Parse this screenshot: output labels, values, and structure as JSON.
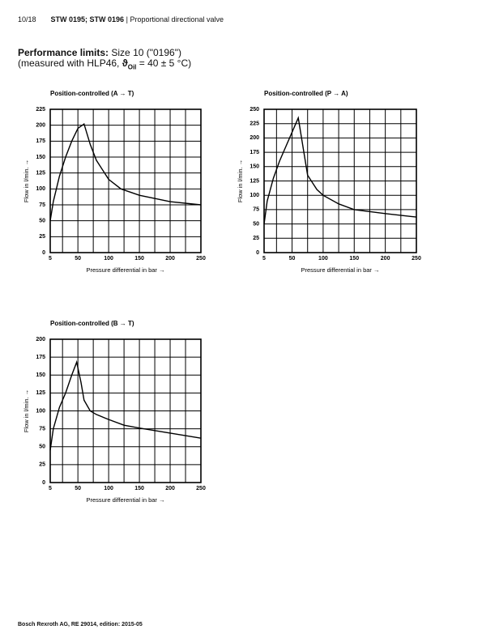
{
  "header": {
    "page": "10/18",
    "product": "STW 0195; STW 0196",
    "separator": "|",
    "subject": "Proportional directional valve"
  },
  "heading": {
    "bold": "Performance limits:",
    "text": "Size 10 (\"0196\")",
    "line2_start": "(measured with HLP46, ",
    "symbol": "ϑ",
    "subscript": "Oil",
    "line2_end": " = 40 ± 5 °C)"
  },
  "footer": "Bosch Rexroth AG, RE 29014, edition: 2015-05",
  "chart_data": [
    {
      "type": "line",
      "title": "Position-controlled (A → T)",
      "xlabel": "Pressure differential in bar →",
      "ylabel": "Flow in l/min. →",
      "color": "#000000",
      "grid": true,
      "xlim": [
        5,
        250
      ],
      "xticks": [
        5,
        50,
        100,
        150,
        200,
        250
      ],
      "xminor": [
        25,
        75,
        125,
        175,
        225
      ],
      "ylim": [
        0,
        225
      ],
      "yticks": [
        0,
        25,
        50,
        75,
        100,
        125,
        150,
        175,
        200,
        225
      ],
      "x": [
        5,
        10,
        20,
        30,
        40,
        50,
        60,
        70,
        80,
        100,
        120,
        150,
        200,
        250
      ],
      "values": [
        50,
        80,
        120,
        150,
        175,
        195,
        202,
        170,
        145,
        115,
        100,
        90,
        80,
        75
      ]
    },
    {
      "type": "line",
      "title": "Position-controlled (P → A)",
      "xlabel": "Pressure differential in bar →",
      "ylabel": "Flow in l/min. →",
      "color": "#000000",
      "grid": true,
      "xlim": [
        5,
        250
      ],
      "xticks": [
        5,
        50,
        100,
        150,
        200,
        250
      ],
      "xminor": [
        25,
        75,
        125,
        175,
        225
      ],
      "ylim": [
        0,
        250
      ],
      "yticks": [
        0,
        25,
        50,
        75,
        100,
        125,
        150,
        175,
        200,
        225,
        250
      ],
      "x": [
        5,
        10,
        20,
        30,
        40,
        50,
        60,
        75,
        90,
        100,
        125,
        150,
        200,
        250
      ],
      "values": [
        50,
        90,
        130,
        160,
        185,
        210,
        235,
        135,
        110,
        100,
        85,
        75,
        68,
        62
      ]
    },
    {
      "type": "line",
      "title": "Position-controlled (B → T)",
      "xlabel": "Pressure differential in bar →",
      "ylabel": "Flow in l/min. →",
      "color": "#000000",
      "grid": true,
      "xlim": [
        5,
        250
      ],
      "xticks": [
        5,
        50,
        100,
        150,
        200,
        250
      ],
      "xminor": [
        25,
        75,
        125,
        175,
        225
      ],
      "ylim": [
        0,
        200
      ],
      "yticks": [
        0,
        25,
        50,
        75,
        100,
        125,
        150,
        175,
        200
      ],
      "x": [
        5,
        10,
        20,
        30,
        40,
        48,
        55,
        60,
        70,
        80,
        100,
        125,
        150,
        200,
        250
      ],
      "values": [
        45,
        75,
        105,
        125,
        150,
        168,
        140,
        115,
        100,
        95,
        88,
        80,
        76,
        69,
        62
      ]
    }
  ]
}
